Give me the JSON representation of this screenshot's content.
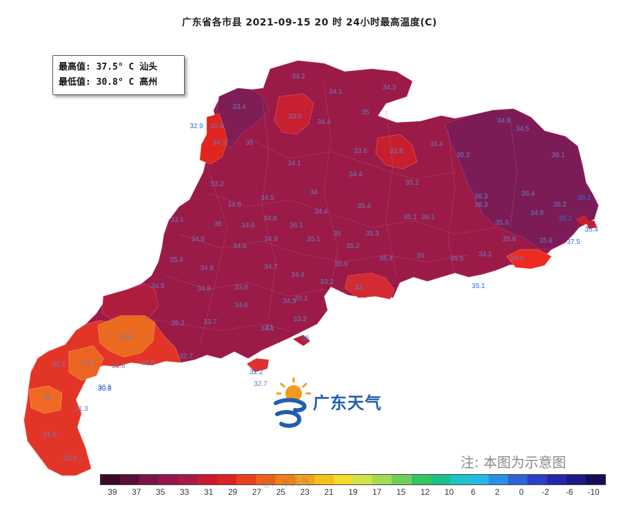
{
  "title": "广东省各市县  2021-09-15 20 时  24小时最高温度(C)",
  "info": {
    "max_line": "最高值: 37.5° C 汕头",
    "min_line": "最低值: 30.8° C 高州"
  },
  "note": "注: 本图为示意图",
  "logo_text": "广东天气",
  "watermark": "@广东天气",
  "colors": {
    "region_dark": "#8e1d4e",
    "region_crimson": "#a51d43",
    "region_red": "#d91e2a",
    "region_orange_red": "#e8402a",
    "region_orange": "#ec6a1f",
    "region_purple": "#6e1d5a",
    "logo_blue": "#1f5fb0",
    "logo_orange": "#f39a1e"
  },
  "colorbar": {
    "colors": [
      "#3b0a2a",
      "#5a0f3a",
      "#7a1448",
      "#94184c",
      "#ab1a44",
      "#c81b32",
      "#dc2222",
      "#e8401e",
      "#ee5f1a",
      "#f28019",
      "#f4a01c",
      "#f3c01f",
      "#eedd2a",
      "#cfe24a",
      "#a6da55",
      "#70cf5a",
      "#36c45f",
      "#1fbf8a",
      "#1dc5c4",
      "#25b8e6",
      "#2b8fe6",
      "#2e64d8",
      "#2b3fc6",
      "#2626a8",
      "#1e1a80",
      "#150f58"
    ],
    "tick_labels": [
      "39",
      "37",
      "35",
      "33",
      "31",
      "29",
      "27",
      "25",
      "23",
      "21",
      "19",
      "17",
      "15",
      "12",
      "10",
      "6",
      "2",
      "0",
      "-2",
      "-6",
      "-10"
    ]
  },
  "stations": [
    {
      "value": "34.2"
    },
    {
      "value": "34.1"
    },
    {
      "value": "34.3"
    },
    {
      "value": "33.4"
    },
    {
      "value": "33.6"
    },
    {
      "value": "34.4"
    },
    {
      "value": "35"
    },
    {
      "value": "32.6"
    },
    {
      "value": "34.3"
    },
    {
      "value": "35"
    },
    {
      "value": "34.1"
    },
    {
      "value": "33.6"
    },
    {
      "value": "33.8"
    },
    {
      "value": "33.4"
    },
    {
      "value": "35.2"
    },
    {
      "value": "34.8"
    },
    {
      "value": "34.5"
    },
    {
      "value": "36.1"
    },
    {
      "value": "33.2"
    },
    {
      "value": "34.5"
    },
    {
      "value": "34"
    },
    {
      "value": "34.4"
    },
    {
      "value": "35.2"
    },
    {
      "value": "36.3"
    },
    {
      "value": "35.4"
    },
    {
      "value": "34.8"
    },
    {
      "value": "34.8"
    },
    {
      "value": "34.4"
    },
    {
      "value": "35.4"
    },
    {
      "value": "35.1"
    },
    {
      "value": "36.3"
    },
    {
      "value": "35.2"
    },
    {
      "value": "34.9"
    },
    {
      "value": "33.1"
    },
    {
      "value": "35"
    },
    {
      "value": "34.6"
    },
    {
      "value": "36.1"
    },
    {
      "value": "35"
    },
    {
      "value": "35.3"
    },
    {
      "value": "36.1"
    },
    {
      "value": "35.3"
    },
    {
      "value": "34.8"
    },
    {
      "value": "34.6"
    },
    {
      "value": "34.9"
    },
    {
      "value": "35.1"
    },
    {
      "value": "35.2"
    },
    {
      "value": "35.4"
    },
    {
      "value": "35"
    },
    {
      "value": "35.5"
    },
    {
      "value": "34.2"
    },
    {
      "value": "35.8"
    },
    {
      "value": "35.8"
    },
    {
      "value": "35.4"
    },
    {
      "value": "34.8"
    },
    {
      "value": "34.7"
    },
    {
      "value": "34.4"
    },
    {
      "value": "35.6"
    },
    {
      "value": "33.2"
    },
    {
      "value": "34.5"
    },
    {
      "value": "34.8"
    },
    {
      "value": "33.8"
    },
    {
      "value": "34.5"
    },
    {
      "value": "33"
    },
    {
      "value": "33.7"
    },
    {
      "value": "34.6"
    },
    {
      "value": "33"
    },
    {
      "value": "33.3"
    },
    {
      "value": "30.8"
    },
    {
      "value": "31.4"
    },
    {
      "value": "31.1"
    },
    {
      "value": "31.6"
    },
    {
      "value": "31.5"
    },
    {
      "value": "32.7"
    },
    {
      "value": "31"
    },
    {
      "value": "30.8"
    },
    {
      "value": "31.3"
    },
    {
      "value": "31.6"
    },
    {
      "value": "32.6"
    },
    {
      "value": "32.7"
    },
    {
      "value": "34.1"
    },
    {
      "value": "32.1"
    },
    {
      "value": "34.5"
    },
    {
      "value": "35.2"
    }
  ],
  "outside_labels": [
    {
      "value": "32.9"
    },
    {
      "value": "36.2"
    },
    {
      "value": "37.5"
    },
    {
      "value": "35.4"
    },
    {
      "value": "35.1"
    },
    {
      "value": "32.2"
    },
    {
      "value": "30.8"
    },
    {
      "value": "35"
    },
    {
      "value": "35.2"
    }
  ]
}
